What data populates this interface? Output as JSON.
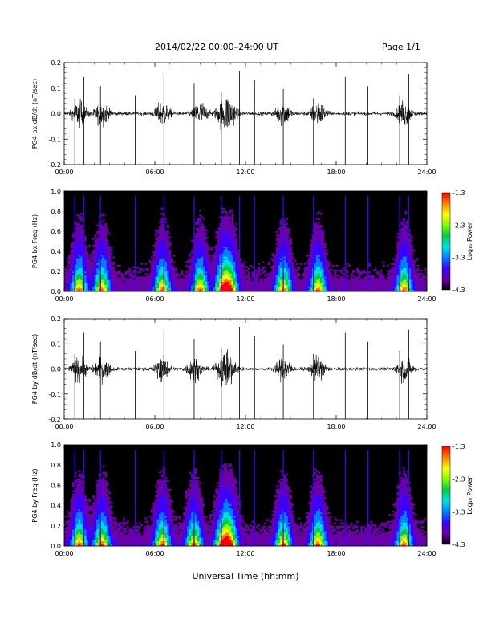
{
  "header": {
    "title": "2014/02/22  00:00–24:00 UT",
    "page": "Page 1/1"
  },
  "footer": {
    "xlabel": "Universal Time (hh:mm)"
  },
  "colors": {
    "trace": "#000000",
    "spectrogram_background": "#000000",
    "colormap": [
      "#6a00a8",
      "#3b00ff",
      "#0080ff",
      "#00e0e0",
      "#00cc44",
      "#80ff00",
      "#ffff00",
      "#ff8000",
      "#ff0000"
    ]
  },
  "chart_data": [
    {
      "type": "line",
      "ylabel": "PG4 bx dB/dt (nT/sec)",
      "xlim": [
        0,
        24
      ],
      "ylim": [
        -0.2,
        0.2
      ],
      "x_ticks": [
        "00:00",
        "06:00",
        "12:00",
        "18:00",
        "24:00"
      ],
      "y_ticks": [
        "-0.2",
        "-0.1",
        "0.0",
        "0.1",
        "0.2"
      ],
      "activity_hours": [
        1.0,
        2.5,
        6.5,
        9.0,
        10.5,
        11.0,
        14.5,
        16.8,
        22.5
      ],
      "spike_hours": [
        0.7,
        1.3,
        2.4,
        4.7,
        6.6,
        8.6,
        10.4,
        11.6,
        12.6,
        14.5,
        16.5,
        18.6,
        20.1,
        22.2,
        22.8
      ]
    },
    {
      "type": "heatmap",
      "ylabel": "PG4 bx Freq (Hz)",
      "xlim": [
        0,
        24
      ],
      "ylim": [
        0.0,
        1.0
      ],
      "x_ticks": [
        "00:00",
        "06:00",
        "12:00",
        "18:00",
        "24:00"
      ],
      "y_ticks": [
        "0.0",
        "0.2",
        "0.4",
        "0.6",
        "0.8",
        "1.0"
      ],
      "colorbar": {
        "label": "Log₁₀ Power",
        "ticks": [
          "-1.3",
          "-2.3",
          "-3.3",
          "-4.3"
        ],
        "range": [
          -4.3,
          -1.3
        ]
      },
      "activity_hours": [
        1.0,
        2.5,
        6.5,
        9.0,
        10.5,
        11.0,
        14.5,
        16.8,
        22.5
      ],
      "spike_hours": [
        0.7,
        1.3,
        2.4,
        4.7,
        6.6,
        8.6,
        10.4,
        11.6,
        12.6,
        14.5,
        16.5,
        18.6,
        20.1,
        22.2,
        22.8
      ]
    },
    {
      "type": "line",
      "ylabel": "PG4 by dB/dt (nT/sec)",
      "xlim": [
        0,
        24
      ],
      "ylim": [
        -0.2,
        0.2
      ],
      "x_ticks": [
        "00:00",
        "06:00",
        "12:00",
        "18:00",
        "24:00"
      ],
      "y_ticks": [
        "-0.2",
        "-0.1",
        "0.0",
        "0.1",
        "0.2"
      ],
      "activity_hours": [
        1.0,
        2.5,
        6.5,
        8.6,
        10.5,
        11.0,
        14.5,
        16.8,
        22.5
      ],
      "spike_hours": [
        0.7,
        1.3,
        2.4,
        4.7,
        6.6,
        8.6,
        10.4,
        11.6,
        12.6,
        14.5,
        16.5,
        18.6,
        20.1,
        22.2,
        22.8
      ]
    },
    {
      "type": "heatmap",
      "ylabel": "PG4 by Freq (Hz)",
      "xlim": [
        0,
        24
      ],
      "ylim": [
        0.0,
        1.0
      ],
      "x_ticks": [
        "00:00",
        "06:00",
        "12:00",
        "18:00",
        "24:00"
      ],
      "y_ticks": [
        "0.0",
        "0.2",
        "0.4",
        "0.6",
        "0.8",
        "1.0"
      ],
      "colorbar": {
        "label": "Log₁₀ Power",
        "ticks": [
          "-1.3",
          "-2.3",
          "-3.3",
          "-4.3"
        ],
        "range": [
          -4.3,
          -1.3
        ]
      },
      "activity_hours": [
        1.0,
        2.5,
        6.5,
        8.6,
        10.5,
        11.0,
        14.5,
        16.8,
        22.5
      ],
      "spike_hours": [
        0.7,
        1.3,
        2.4,
        4.7,
        6.6,
        8.6,
        10.4,
        11.6,
        12.6,
        14.5,
        16.5,
        18.6,
        20.1,
        22.2,
        22.8
      ]
    }
  ]
}
